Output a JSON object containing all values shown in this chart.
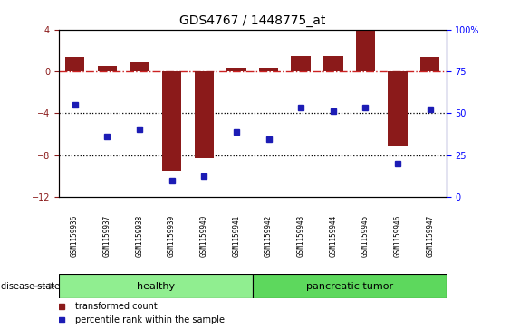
{
  "title": "GDS4767 / 1448775_at",
  "samples": [
    "GSM1159936",
    "GSM1159937",
    "GSM1159938",
    "GSM1159939",
    "GSM1159940",
    "GSM1159941",
    "GSM1159942",
    "GSM1159943",
    "GSM1159944",
    "GSM1159945",
    "GSM1159946",
    "GSM1159947"
  ],
  "red_values": [
    1.4,
    0.5,
    0.9,
    -9.5,
    -8.3,
    0.35,
    0.3,
    1.5,
    1.5,
    4.0,
    -7.2,
    1.4
  ],
  "blue_values": [
    -3.2,
    -6.2,
    -5.5,
    -10.5,
    -10.0,
    -5.8,
    -6.5,
    -3.5,
    -3.8,
    -3.5,
    -8.8,
    -3.6
  ],
  "healthy_count": 6,
  "pancreatic_count": 6,
  "ylim_left": [
    -12,
    4
  ],
  "ylim_right": [
    0,
    100
  ],
  "red_color": "#8B1A1A",
  "blue_color": "#1C1CB5",
  "healthy_color": "#90EE90",
  "pancreatic_color": "#5DD85D",
  "tick_bg_color": "#C8C8C8",
  "zero_line_color": "#CC2222",
  "legend_label_red": "transformed count",
  "legend_label_blue": "percentile rank within the sample",
  "disease_label": "disease state",
  "healthy_label": "healthy",
  "pancreatic_label": "pancreatic tumor",
  "bar_width": 0.6,
  "yticks_left": [
    -12,
    -8,
    -4,
    0,
    4
  ],
  "yticks_right": [
    0,
    25,
    50,
    75,
    100
  ],
  "right_tick_labels": [
    "0",
    "25",
    "50",
    "75",
    "100%"
  ]
}
